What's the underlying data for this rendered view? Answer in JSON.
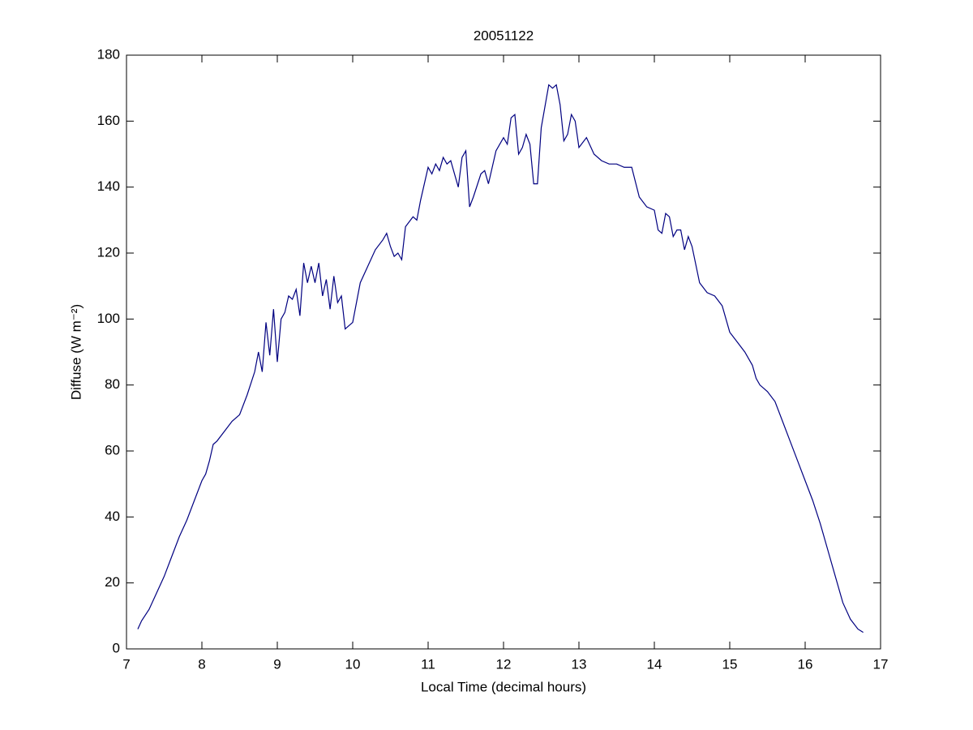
{
  "chart_data": {
    "type": "line",
    "title": "20051122",
    "xlabel": "Local Time (decimal hours)",
    "ylabel": "Diffuse (W m⁻²)",
    "xlim": [
      7,
      17
    ],
    "xticks": [
      7,
      8,
      9,
      10,
      11,
      12,
      13,
      14,
      15,
      16,
      17
    ],
    "ylim": [
      0,
      180
    ],
    "yticks": [
      0,
      20,
      40,
      60,
      80,
      100,
      120,
      140,
      160,
      180
    ],
    "series": [
      {
        "name": "Diffuse",
        "color": "#000080",
        "x": [
          7.15,
          7.2,
          7.3,
          7.4,
          7.5,
          7.6,
          7.7,
          7.8,
          7.9,
          8.0,
          8.05,
          8.1,
          8.15,
          8.2,
          8.3,
          8.4,
          8.5,
          8.6,
          8.7,
          8.75,
          8.8,
          8.85,
          8.9,
          8.95,
          9.0,
          9.05,
          9.1,
          9.15,
          9.2,
          9.25,
          9.3,
          9.35,
          9.4,
          9.45,
          9.5,
          9.55,
          9.6,
          9.65,
          9.7,
          9.75,
          9.8,
          9.85,
          9.9,
          10.0,
          10.1,
          10.2,
          10.3,
          10.4,
          10.45,
          10.5,
          10.55,
          10.6,
          10.65,
          10.7,
          10.8,
          10.85,
          10.9,
          11.0,
          11.05,
          11.1,
          11.15,
          11.2,
          11.25,
          11.3,
          11.35,
          11.4,
          11.45,
          11.5,
          11.55,
          11.6,
          11.7,
          11.75,
          11.8,
          11.9,
          12.0,
          12.05,
          12.1,
          12.15,
          12.2,
          12.25,
          12.3,
          12.35,
          12.4,
          12.45,
          12.5,
          12.6,
          12.65,
          12.7,
          12.75,
          12.8,
          12.85,
          12.9,
          12.95,
          13.0,
          13.1,
          13.2,
          13.3,
          13.4,
          13.5,
          13.6,
          13.7,
          13.8,
          13.9,
          14.0,
          14.05,
          14.1,
          14.15,
          14.2,
          14.25,
          14.3,
          14.35,
          14.4,
          14.45,
          14.5,
          14.6,
          14.7,
          14.8,
          14.9,
          15.0,
          15.1,
          15.2,
          15.3,
          15.35,
          15.4,
          15.5,
          15.6,
          15.7,
          15.8,
          15.9,
          16.0,
          16.1,
          16.2,
          16.3,
          16.4,
          16.5,
          16.6,
          16.7,
          16.77
        ],
        "values": [
          6,
          8.5,
          12,
          17,
          22,
          28,
          34,
          39,
          45,
          51,
          53,
          57,
          62,
          63,
          66,
          69,
          71,
          77,
          84,
          90,
          84,
          99,
          89,
          103,
          87,
          100,
          102,
          107,
          106,
          109,
          101,
          117,
          111,
          116,
          111,
          117,
          107,
          112,
          103,
          113,
          105,
          107,
          97,
          99,
          111,
          116,
          121,
          124,
          126,
          122,
          119,
          120,
          118,
          128,
          131,
          130,
          136,
          146,
          144,
          147,
          145,
          149,
          147,
          148,
          144,
          140,
          149,
          151,
          134,
          137,
          144,
          145,
          141,
          151,
          155,
          153,
          161,
          162,
          150,
          152,
          156,
          153,
          141,
          141,
          158,
          171,
          170,
          171,
          165,
          154,
          156,
          162,
          160,
          152,
          155,
          150,
          148,
          147,
          147,
          146,
          146,
          137,
          134,
          133,
          127,
          126,
          132,
          131,
          125,
          127,
          127,
          121,
          125,
          122,
          111,
          108,
          107,
          104,
          96,
          93,
          90,
          86,
          82,
          80,
          78,
          75,
          69,
          63,
          57,
          51,
          45,
          38,
          30,
          22,
          14,
          9,
          6,
          5
        ]
      }
    ]
  }
}
